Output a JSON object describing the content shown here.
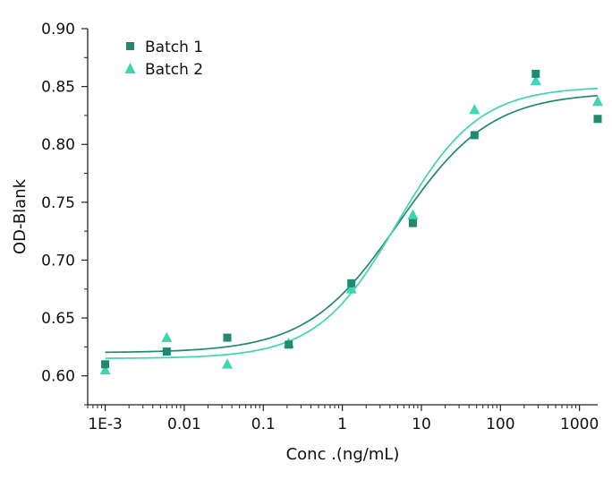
{
  "chart_data": {
    "type": "scatter",
    "title": "",
    "xlabel": "Conc .(ng/mL)",
    "ylabel": "OD-Blank",
    "xscale": "log",
    "xlim": [
      0.0006,
      1700
    ],
    "ylim": [
      0.575,
      0.9
    ],
    "yticks": [
      0.6,
      0.65,
      0.7,
      0.75,
      0.8,
      0.85,
      0.9
    ],
    "ytick_labels": [
      "0.60",
      "0.65",
      "0.70",
      "0.75",
      "0.80",
      "0.85",
      "0.90"
    ],
    "xticks": [
      0.001,
      0.01,
      0.1,
      1,
      10,
      100,
      1000
    ],
    "xtick_labels": [
      "1E-3",
      "0.01",
      "0.1",
      "1",
      "10",
      "100",
      "1000"
    ],
    "grid": false,
    "legend_position": "top-left",
    "series": [
      {
        "name": "Batch 1",
        "marker": "square",
        "color": "#1f8a6e",
        "x": [
          0.001,
          0.006,
          0.035,
          0.21,
          1.3,
          7.8,
          47,
          280,
          1700
        ],
        "y": [
          0.61,
          0.621,
          0.633,
          0.627,
          0.68,
          0.732,
          0.808,
          0.861,
          0.822
        ],
        "fit": {
          "model": "4PL",
          "bottom": 0.62,
          "top": 0.845,
          "ec50": 5.2,
          "hill": 0.75
        }
      },
      {
        "name": "Batch 2",
        "marker": "triangle",
        "color": "#3dd6b3",
        "x": [
          0.001,
          0.006,
          0.035,
          0.21,
          1.3,
          7.8,
          47,
          280,
          1700
        ],
        "y": [
          0.605,
          0.633,
          0.61,
          0.628,
          0.675,
          0.739,
          0.83,
          0.855,
          0.837
        ],
        "fit": {
          "model": "4PL",
          "bottom": 0.615,
          "top": 0.85,
          "ec50": 5.0,
          "hill": 0.85
        }
      }
    ]
  }
}
